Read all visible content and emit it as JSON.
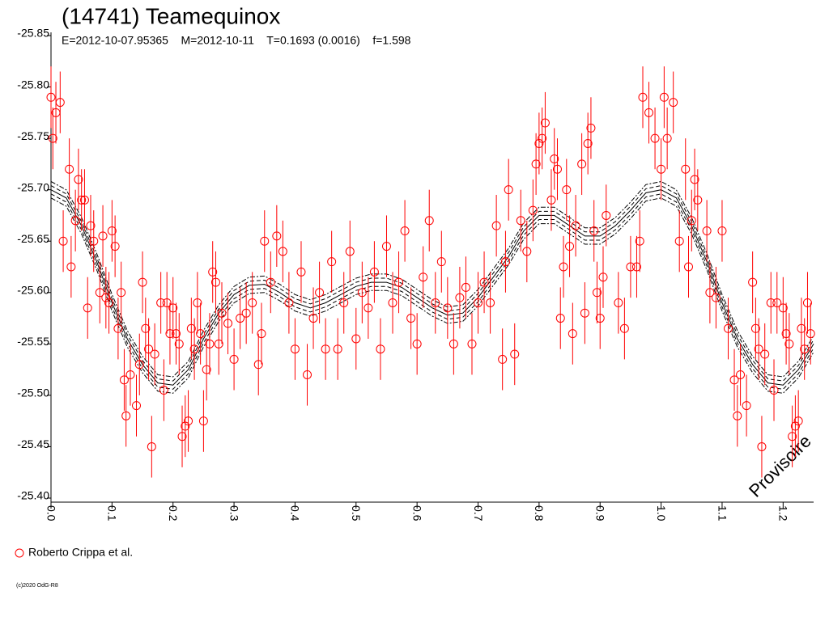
{
  "chart_data": {
    "type": "scatter",
    "title": "(14741) Teamequinox",
    "subtitle": "E=2012-10-07.95365    M=2012-10-11    T=0.1693 (0.0016)    f=1.598",
    "watermark": "Provisoire",
    "footer": "(c)2020 OdG-R8",
    "xlim": [
      0,
      1.25
    ],
    "xticks": [
      {
        "value": 0,
        "label": "0.0"
      },
      0.1,
      0.2,
      0.3,
      0.4,
      0.5,
      0.6,
      0.7,
      0.8,
      0.9,
      {
        "value": 1,
        "label": "1.0"
      },
      1.1,
      1.2
    ],
    "ylim": [
      -25.4,
      -25.85
    ],
    "yticks": [
      -25.85,
      {
        "value": -25.8,
        "label": "-25.80"
      },
      -25.75,
      {
        "value": -25.7,
        "label": "-25.70"
      },
      -25.65,
      {
        "value": -25.6,
        "label": "-25.60"
      },
      -25.55,
      {
        "value": -25.5,
        "label": "-25.50"
      },
      -25.45,
      {
        "value": -25.4,
        "label": "-25.40"
      }
    ],
    "series": [
      {
        "name": "Roberto Crippa et al.",
        "color": "#ff0000",
        "error": 0.03,
        "x": [
          0.0,
          0.003,
          0.008,
          0.015,
          0.02,
          0.03,
          0.033,
          0.04,
          0.045,
          0.05,
          0.055,
          0.06,
          0.065,
          0.07,
          0.08,
          0.085,
          0.09,
          0.095,
          0.1,
          0.105,
          0.11,
          0.115,
          0.12,
          0.123,
          0.13,
          0.14,
          0.145,
          0.15,
          0.155,
          0.16,
          0.165,
          0.17,
          0.18,
          0.185,
          0.19,
          0.195,
          0.2,
          0.205,
          0.21,
          0.215,
          0.22,
          0.225,
          0.23,
          0.235,
          0.24,
          0.245,
          0.25,
          0.255,
          0.26,
          0.265,
          0.27,
          0.275,
          0.28,
          0.29,
          0.3,
          0.31,
          0.32,
          0.33,
          0.34,
          0.345,
          0.35,
          0.36,
          0.37,
          0.38,
          0.39,
          0.4,
          0.41,
          0.42,
          0.43,
          0.44,
          0.45,
          0.46,
          0.47,
          0.48,
          0.49,
          0.5,
          0.51,
          0.52,
          0.53,
          0.54,
          0.55,
          0.56,
          0.57,
          0.58,
          0.59,
          0.6,
          0.61,
          0.62,
          0.63,
          0.64,
          0.65,
          0.66,
          0.67,
          0.68,
          0.69,
          0.7,
          0.71,
          0.72,
          0.73,
          0.74,
          0.745,
          0.75,
          0.76,
          0.77,
          0.78,
          0.79,
          0.795,
          0.8,
          0.805,
          0.81,
          0.82,
          0.825,
          0.83,
          0.835,
          0.84,
          0.845,
          0.85,
          0.855,
          0.86,
          0.87,
          0.875,
          0.88,
          0.885,
          0.89,
          0.895,
          0.9,
          0.905,
          0.91,
          0.93,
          0.94,
          0.95,
          0.96,
          0.965,
          0.97,
          0.98,
          0.99,
          1.0,
          1.005,
          1.01,
          1.02,
          1.03,
          1.04,
          1.045,
          1.05,
          1.055,
          1.06,
          1.075,
          1.08,
          1.09,
          1.1,
          1.11,
          1.12,
          1.125,
          1.13,
          1.14,
          1.15,
          1.155,
          1.16,
          1.165,
          1.17,
          1.18,
          1.185,
          1.19,
          1.2,
          1.205,
          1.21,
          1.215,
          1.22,
          1.225,
          1.23,
          1.235,
          1.24,
          1.245
        ],
        "values": [
          -25.79,
          -25.75,
          -25.775,
          -25.785,
          -25.65,
          -25.72,
          -25.625,
          -25.67,
          -25.71,
          -25.69,
          -25.69,
          -25.585,
          -25.665,
          -25.65,
          -25.6,
          -25.655,
          -25.595,
          -25.59,
          -25.66,
          -25.645,
          -25.565,
          -25.6,
          -25.515,
          -25.48,
          -25.52,
          -25.49,
          -25.53,
          -25.61,
          -25.565,
          -25.545,
          -25.45,
          -25.54,
          -25.59,
          -25.505,
          -25.59,
          -25.56,
          -25.585,
          -25.56,
          -25.55,
          -25.46,
          -25.47,
          -25.475,
          -25.565,
          -25.545,
          -25.59,
          -25.56,
          -25.475,
          -25.525,
          -25.55,
          -25.62,
          -25.61,
          -25.55,
          -25.58,
          -25.57,
          -25.535,
          -25.575,
          -25.58,
          -25.59,
          -25.53,
          -25.56,
          -25.65,
          -25.61,
          -25.655,
          -25.64,
          -25.59,
          -25.545,
          -25.62,
          -25.52,
          -25.575,
          -25.6,
          -25.545,
          -25.63,
          -25.545,
          -25.59,
          -25.64,
          -25.555,
          -25.6,
          -25.585,
          -25.62,
          -25.545,
          -25.645,
          -25.59,
          -25.61,
          -25.66,
          -25.575,
          -25.55,
          -25.615,
          -25.67,
          -25.59,
          -25.63,
          -25.585,
          -25.55,
          -25.595,
          -25.605,
          -25.55,
          -25.59,
          -25.61,
          -25.59,
          -25.665,
          -25.535,
          -25.63,
          -25.7,
          -25.54,
          -25.67,
          -25.64,
          -25.68,
          -25.725,
          -25.745,
          -25.75,
          -25.765,
          -25.69,
          -25.73,
          -25.72,
          -25.575,
          -25.625,
          -25.7,
          -25.645,
          -25.56,
          -25.665,
          -25.725,
          -25.58,
          -25.745,
          -25.76,
          -25.66,
          -25.6,
          -25.575,
          -25.615,
          -25.675,
          -25.59,
          -25.565,
          -25.625,
          -25.625,
          -25.65,
          -25.79,
          -25.775,
          -25.75,
          -25.72,
          -25.79,
          -25.75,
          -25.785,
          -25.65,
          -25.72,
          -25.625,
          -25.67,
          -25.71,
          -25.69,
          -25.66,
          -25.6,
          -25.595,
          -25.66,
          -25.565,
          -25.515,
          -25.48,
          -25.52,
          -25.49,
          -25.61,
          -25.565,
          -25.545,
          -25.45,
          -25.54,
          -25.59,
          -25.505,
          -25.59,
          -25.585,
          -25.56,
          -25.55,
          -25.46,
          -25.47,
          -25.475,
          -25.565,
          -25.545,
          -25.59,
          -25.56
        ]
      }
    ],
    "fit": {
      "color": "#000000",
      "bands": [
        0.004,
        0.008
      ],
      "x": [
        0,
        0.025,
        0.05,
        0.075,
        0.1,
        0.125,
        0.15,
        0.175,
        0.2,
        0.225,
        0.25,
        0.275,
        0.3,
        0.325,
        0.35,
        0.375,
        0.4,
        0.425,
        0.45,
        0.475,
        0.5,
        0.525,
        0.55,
        0.575,
        0.6,
        0.625,
        0.65,
        0.675,
        0.7,
        0.725,
        0.75,
        0.775,
        0.8,
        0.825,
        0.85,
        0.875,
        0.9,
        0.925,
        0.95,
        0.975,
        1.0,
        1.025,
        1.05,
        1.075,
        1.1,
        1.125,
        1.15,
        1.175,
        1.2,
        1.225,
        1.25
      ],
      "values": [
        -25.7,
        -25.692,
        -25.665,
        -25.63,
        -25.59,
        -25.555,
        -25.53,
        -25.512,
        -25.51,
        -25.525,
        -25.555,
        -25.58,
        -25.598,
        -25.607,
        -25.608,
        -25.6,
        -25.59,
        -25.585,
        -25.59,
        -25.598,
        -25.606,
        -25.61,
        -25.61,
        -25.605,
        -25.595,
        -25.585,
        -25.578,
        -25.58,
        -25.595,
        -25.615,
        -25.635,
        -25.66,
        -25.675,
        -25.675,
        -25.665,
        -25.655,
        -25.655,
        -25.665,
        -25.68,
        -25.697,
        -25.7,
        -25.692,
        -25.665,
        -25.63,
        -25.59,
        -25.555,
        -25.53,
        -25.512,
        -25.51,
        -25.525,
        -25.55
      ]
    }
  }
}
